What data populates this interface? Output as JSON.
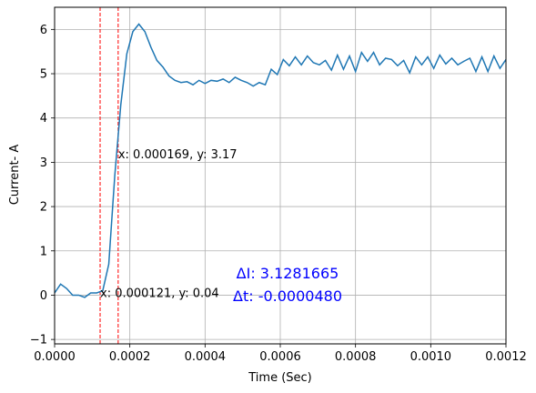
{
  "chart_data": {
    "type": "line",
    "title": "",
    "xlabel": "Time (Sec)",
    "ylabel": "Current- A",
    "xlim": [
      0,
      0.0012
    ],
    "ylim": [
      -1.1,
      6.5
    ],
    "grid": true,
    "line_color": "#1f77b4",
    "marker_line_color": "#ff0000",
    "delta_text_color": "#0000ff",
    "x_ticks": [
      0,
      0.0002,
      0.0004,
      0.0006,
      0.0008,
      0.001,
      0.0012
    ],
    "x_tick_labels": [
      "0.0000",
      "0.0002",
      "0.0004",
      "0.0006",
      "0.0008",
      "0.0010",
      "0.0012"
    ],
    "y_ticks": [
      -1,
      0,
      1,
      2,
      3,
      4,
      5,
      6
    ],
    "y_tick_labels": [
      "−1",
      "0",
      "1",
      "2",
      "3",
      "4",
      "5",
      "6"
    ],
    "series": [
      {
        "x": [
          0,
          1.6e-05,
          3.2e-05,
          4.8e-05,
          6.4e-05,
          8e-05,
          9.6e-05,
          0.000112,
          0.000128,
          0.000144,
          0.00016,
          0.000176,
          0.000192,
          0.000208,
          0.000224,
          0.00024,
          0.000256,
          0.000272,
          0.000288,
          0.000304,
          0.00032,
          0.000336,
          0.000352,
          0.000368,
          0.000384,
          0.0004,
          0.000416,
          0.000432,
          0.000448,
          0.000464,
          0.00048,
          0.000496,
          0.000512,
          0.000528,
          0.000544,
          0.00056,
          0.000576,
          0.000592,
          0.000608,
          0.000624,
          0.00064,
          0.000656,
          0.000672,
          0.000688,
          0.000704,
          0.00072,
          0.000736,
          0.000752,
          0.000768,
          0.000784,
          0.0008,
          0.000816,
          0.000832,
          0.000848,
          0.000864,
          0.00088,
          0.000896,
          0.000912,
          0.000928,
          0.000944,
          0.00096,
          0.000976,
          0.000992,
          0.001008,
          0.001024,
          0.00104,
          0.001056,
          0.001072,
          0.001088,
          0.001104,
          0.00112,
          0.001136,
          0.001152,
          0.001168,
          0.001184,
          0.0012
        ],
        "y": [
          0.05,
          0.25,
          0.15,
          0.0,
          0.0,
          -0.05,
          0.05,
          0.05,
          0.1,
          0.7,
          2.7,
          4.3,
          5.45,
          5.95,
          6.12,
          5.95,
          5.6,
          5.3,
          5.15,
          4.95,
          4.85,
          4.8,
          4.82,
          4.75,
          4.85,
          4.78,
          4.85,
          4.83,
          4.88,
          4.8,
          4.92,
          4.85,
          4.8,
          4.72,
          4.8,
          4.75,
          5.1,
          4.98,
          5.32,
          5.18,
          5.38,
          5.2,
          5.4,
          5.25,
          5.2,
          5.3,
          5.08,
          5.42,
          5.1,
          5.4,
          5.05,
          5.48,
          5.28,
          5.48,
          5.2,
          5.35,
          5.32,
          5.18,
          5.3,
          5.02,
          5.38,
          5.2,
          5.38,
          5.12,
          5.42,
          5.22,
          5.35,
          5.2,
          5.28,
          5.35,
          5.05,
          5.38,
          5.05,
          5.4,
          5.12,
          5.32
        ]
      }
    ],
    "markers": [
      {
        "x": 0.000121,
        "y": 0.04,
        "label": "x: 0.000121, y: 0.04"
      },
      {
        "x": 0.000169,
        "y": 3.17,
        "label": "x: 0.000169, y: 3.17"
      }
    ],
    "annotations": {
      "delta_i": "ΔI: 3.1281665",
      "delta_t": "Δt: -0.0000480"
    }
  }
}
